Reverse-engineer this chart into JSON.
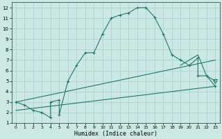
{
  "xlabel": "Humidex (Indice chaleur)",
  "xlim": [
    -0.5,
    23.5
  ],
  "ylim": [
    1,
    12.5
  ],
  "xticks": [
    0,
    1,
    2,
    3,
    4,
    5,
    6,
    7,
    8,
    9,
    10,
    11,
    12,
    13,
    14,
    15,
    16,
    17,
    18,
    19,
    20,
    21,
    22,
    23
  ],
  "yticks": [
    1,
    2,
    3,
    4,
    5,
    6,
    7,
    8,
    9,
    10,
    11,
    12
  ],
  "bg_color": "#cce8e4",
  "line_color": "#1a7a6e",
  "grid_color": "#aacfcb",
  "main_x": [
    0,
    1,
    2,
    3,
    4,
    4,
    5,
    5,
    6,
    7,
    8,
    9,
    10,
    11,
    12,
    13,
    14,
    15,
    16,
    17,
    18,
    19,
    20,
    21,
    21,
    22,
    23
  ],
  "main_y": [
    3,
    2.7,
    2.2,
    2.0,
    1.5,
    3.0,
    3.2,
    1.8,
    5.0,
    6.5,
    7.7,
    7.7,
    9.5,
    11.0,
    11.3,
    11.5,
    12.0,
    12.0,
    11.1,
    9.5,
    7.5,
    7.0,
    6.5,
    7.2,
    5.5,
    5.5,
    4.5
  ],
  "line2_x": [
    0,
    23
  ],
  "line2_y": [
    2.2,
    4.5
  ],
  "line3_x": [
    0,
    23
  ],
  "line3_y": [
    3.0,
    7.0
  ],
  "line4_x": [
    19,
    20,
    21,
    22,
    23
  ],
  "line4_y": [
    6.5,
    7.0,
    7.5,
    5.5,
    5.0
  ]
}
